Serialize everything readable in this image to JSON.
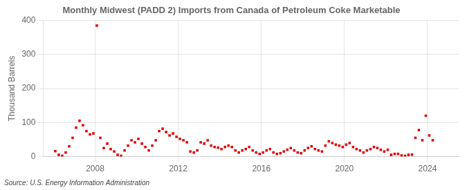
{
  "chart_data": {
    "type": "scatter",
    "title": "Monthly Midwest (PADD 2) Imports from Canada of Petroleum Coke Marketable",
    "ylabel": "Thousand Barrels",
    "annotation": "Source: U.S. Energy Information Administration",
    "color": "#dd0000",
    "marker": "square",
    "grid": true,
    "xlim": [
      2005.5,
      2025.5
    ],
    "xticks": [
      2008,
      2012,
      2016,
      2020,
      2024
    ],
    "ylim": [
      0,
      400
    ],
    "yticks": [
      0,
      100,
      200,
      300,
      400
    ],
    "x": [
      2006.083,
      2006.25,
      2006.417,
      2006.583,
      2006.75,
      2006.917,
      2007.083,
      2007.25,
      2007.417,
      2007.583,
      2007.75,
      2007.917,
      2008.083,
      2008.25,
      2008.417,
      2008.583,
      2008.75,
      2008.917,
      2009.083,
      2009.25,
      2009.417,
      2009.583,
      2009.75,
      2009.917,
      2010.083,
      2010.25,
      2010.417,
      2010.583,
      2010.75,
      2010.917,
      2011.083,
      2011.25,
      2011.417,
      2011.583,
      2011.75,
      2011.917,
      2012.083,
      2012.25,
      2012.417,
      2012.583,
      2012.75,
      2012.917,
      2013.083,
      2013.25,
      2013.417,
      2013.583,
      2013.75,
      2013.917,
      2014.083,
      2014.25,
      2014.417,
      2014.583,
      2014.75,
      2014.917,
      2015.083,
      2015.25,
      2015.417,
      2015.583,
      2015.75,
      2015.917,
      2016.083,
      2016.25,
      2016.417,
      2016.583,
      2016.75,
      2016.917,
      2017.083,
      2017.25,
      2017.417,
      2017.583,
      2017.75,
      2017.917,
      2018.083,
      2018.25,
      2018.417,
      2018.583,
      2018.75,
      2018.917,
      2019.083,
      2019.25,
      2019.417,
      2019.583,
      2019.75,
      2019.917,
      2020.083,
      2020.25,
      2020.417,
      2020.583,
      2020.75,
      2020.917,
      2021.083,
      2021.25,
      2021.417,
      2021.583,
      2021.75,
      2021.917,
      2022.083,
      2022.25,
      2022.417,
      2022.583,
      2022.75,
      2022.917,
      2023.083,
      2023.25,
      2023.417,
      2023.583,
      2023.75,
      2023.917,
      2024.083,
      2024.25
    ],
    "values": [
      16,
      5,
      2,
      12,
      30,
      55,
      85,
      105,
      92,
      75,
      65,
      68,
      385,
      55,
      25,
      38,
      22,
      15,
      5,
      2,
      18,
      32,
      48,
      42,
      52,
      38,
      28,
      18,
      32,
      48,
      75,
      82,
      72,
      62,
      68,
      58,
      52,
      48,
      42,
      15,
      12,
      18,
      42,
      38,
      48,
      32,
      28,
      26,
      22,
      28,
      32,
      28,
      18,
      12,
      18,
      22,
      28,
      18,
      12,
      8,
      12,
      18,
      22,
      12,
      8,
      10,
      15,
      20,
      25,
      18,
      12,
      10,
      18,
      25,
      30,
      22,
      18,
      15,
      32,
      45,
      40,
      35,
      32,
      28,
      35,
      40,
      28,
      22,
      18,
      12,
      18,
      22,
      28,
      25,
      20,
      15,
      20,
      5,
      8,
      8,
      3,
      2,
      5,
      6,
      55,
      78,
      48,
      120,
      62,
      48
    ]
  }
}
